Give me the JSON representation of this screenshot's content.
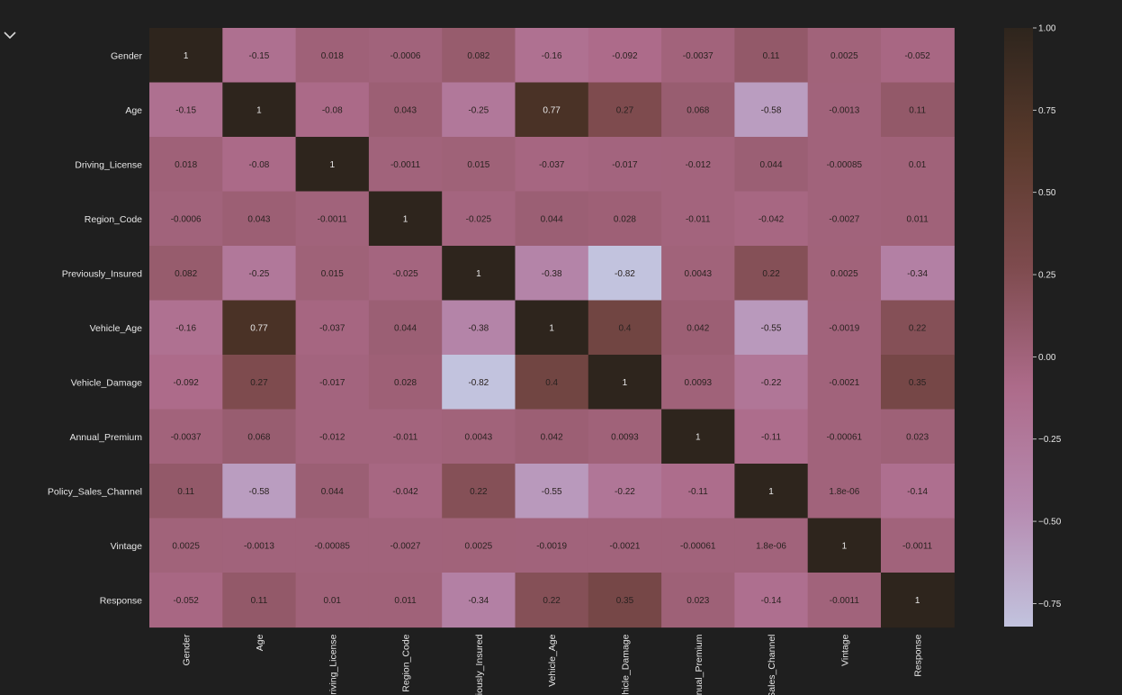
{
  "ui": {
    "collapse_icon": "chevron-down-icon"
  },
  "colors": {
    "background": "#1f1f1f",
    "text": "#e6e6e6",
    "colormap": [
      "#c2c3de",
      "#b68ab0",
      "#ad6b8a",
      "#7e4b4e",
      "#5a3a2c",
      "#2e251d"
    ]
  },
  "chart_data": {
    "type": "heatmap",
    "title": "",
    "xlabel": "",
    "ylabel": "",
    "labels": [
      "Gender",
      "Age",
      "Driving_License",
      "Region_Code",
      "Previously_Insured",
      "Vehicle_Age",
      "Vehicle_Damage",
      "Annual_Premium",
      "Policy_Sales_Channel",
      "Vintage",
      "Response"
    ],
    "values": [
      [
        1,
        -0.15,
        0.018,
        -0.0006,
        0.082,
        -0.16,
        -0.092,
        -0.0037,
        0.11,
        0.0025,
        -0.052
      ],
      [
        -0.15,
        1,
        -0.08,
        0.043,
        -0.25,
        0.77,
        0.27,
        0.068,
        -0.58,
        -0.0013,
        0.11
      ],
      [
        0.018,
        -0.08,
        1,
        -0.0011,
        0.015,
        -0.037,
        -0.017,
        -0.012,
        0.044,
        -0.00085,
        0.01
      ],
      [
        -0.0006,
        0.043,
        -0.0011,
        1,
        -0.025,
        0.044,
        0.028,
        -0.011,
        -0.042,
        -0.0027,
        0.011
      ],
      [
        0.082,
        -0.25,
        0.015,
        -0.025,
        1,
        -0.38,
        -0.82,
        0.0043,
        0.22,
        0.0025,
        -0.34
      ],
      [
        -0.16,
        0.77,
        -0.037,
        0.044,
        -0.38,
        1,
        0.4,
        0.042,
        -0.55,
        -0.0019,
        0.22
      ],
      [
        -0.092,
        0.27,
        -0.017,
        0.028,
        -0.82,
        0.4,
        1,
        0.0093,
        -0.22,
        -0.0021,
        0.35
      ],
      [
        -0.0037,
        0.068,
        -0.012,
        -0.011,
        0.0043,
        0.042,
        0.0093,
        1,
        -0.11,
        -0.00061,
        0.023
      ],
      [
        0.11,
        -0.58,
        0.044,
        -0.042,
        0.22,
        -0.55,
        -0.22,
        -0.11,
        1,
        1.8e-06,
        -0.14
      ],
      [
        0.0025,
        -0.0013,
        -0.00085,
        -0.0027,
        0.0025,
        -0.0019,
        -0.0021,
        -0.00061,
        1.8e-06,
        1,
        -0.0011
      ],
      [
        -0.052,
        0.11,
        0.01,
        0.011,
        -0.34,
        0.22,
        0.35,
        0.023,
        -0.14,
        -0.0011,
        1
      ]
    ],
    "display_values": [
      [
        "1",
        "-0.15",
        "0.018",
        "-0.0006",
        "0.082",
        "-0.16",
        "-0.092",
        "-0.0037",
        "0.11",
        "0.0025",
        "-0.052"
      ],
      [
        "-0.15",
        "1",
        "-0.08",
        "0.043",
        "-0.25",
        "0.77",
        "0.27",
        "0.068",
        "-0.58",
        "-0.0013",
        "0.11"
      ],
      [
        "0.018",
        "-0.08",
        "1",
        "-0.0011",
        "0.015",
        "-0.037",
        "-0.017",
        "-0.012",
        "0.044",
        "-0.00085",
        "0.01"
      ],
      [
        "-0.0006",
        "0.043",
        "-0.0011",
        "1",
        "-0.025",
        "0.044",
        "0.028",
        "-0.011",
        "-0.042",
        "-0.0027",
        "0.011"
      ],
      [
        "0.082",
        "-0.25",
        "0.015",
        "-0.025",
        "1",
        "-0.38",
        "-0.82",
        "0.0043",
        "0.22",
        "0.0025",
        "-0.34"
      ],
      [
        "-0.16",
        "0.77",
        "-0.037",
        "0.044",
        "-0.38",
        "1",
        "0.4",
        "0.042",
        "-0.55",
        "-0.0019",
        "0.22"
      ],
      [
        "-0.092",
        "0.27",
        "-0.017",
        "0.028",
        "-0.82",
        "0.4",
        "1",
        "0.0093",
        "-0.22",
        "-0.0021",
        "0.35"
      ],
      [
        "-0.0037",
        "0.068",
        "-0.012",
        "-0.011",
        "0.0043",
        "0.042",
        "0.0093",
        "1",
        "-0.11",
        "-0.00061",
        "0.023"
      ],
      [
        "0.11",
        "-0.58",
        "0.044",
        "-0.042",
        "0.22",
        "-0.55",
        "-0.22",
        "-0.11",
        "1",
        "1.8e-06",
        "-0.14"
      ],
      [
        "0.0025",
        "-0.0013",
        "-0.00085",
        "-0.0027",
        "0.0025",
        "-0.0019",
        "-0.0021",
        "-0.00061",
        "1.8e-06",
        "1",
        "-0.0011"
      ],
      [
        "-0.052",
        "0.11",
        "0.01",
        "0.011",
        "-0.34",
        "0.22",
        "0.35",
        "0.023",
        "-0.14",
        "-0.0011",
        "1"
      ]
    ],
    "colorbar": {
      "vmin": -0.82,
      "vmax": 1.0,
      "ticks": [
        1.0,
        0.75,
        0.5,
        0.25,
        0.0,
        -0.25,
        -0.5,
        -0.75
      ],
      "tick_labels": [
        "1.00",
        "0.75",
        "0.50",
        "0.25",
        "0.00",
        "−0.25",
        "−0.50",
        "−0.75"
      ]
    },
    "grid": false,
    "legend": "colorbar-right"
  }
}
